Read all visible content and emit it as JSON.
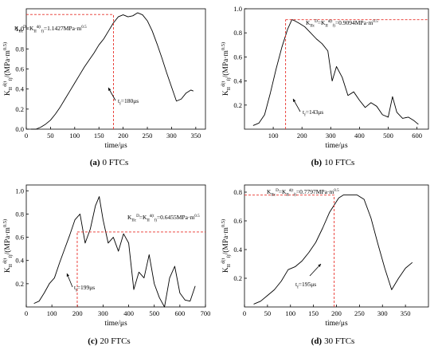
{
  "chart_data": [
    {
      "type": "line",
      "panel_letter": "(a)",
      "caption": "0 FTCs",
      "xlabel": "time/μs",
      "ylabel": "K_II^d(t_f)/(MPa·m^0.5)",
      "xlim": [
        0,
        370
      ],
      "ylim": [
        0,
        1.2
      ],
      "xticks": [
        0,
        50,
        100,
        150,
        200,
        250,
        300,
        350
      ],
      "yticks": [
        0.0,
        0.2,
        0.4,
        0.6,
        0.8,
        1.0
      ],
      "series": [
        {
          "x": [
            10,
            20,
            30,
            40,
            50,
            60,
            70,
            80,
            90,
            100,
            110,
            120,
            130,
            140,
            150,
            160,
            170,
            180,
            190,
            200,
            210,
            220,
            230,
            240,
            250,
            260,
            270,
            280,
            290,
            300,
            310,
            320,
            330,
            340,
            345
          ],
          "y": [
            0.0,
            0.0,
            0.02,
            0.05,
            0.09,
            0.15,
            0.22,
            0.3,
            0.38,
            0.46,
            0.54,
            0.62,
            0.69,
            0.76,
            0.84,
            0.9,
            0.98,
            1.06,
            1.12,
            1.14,
            1.12,
            1.13,
            1.16,
            1.14,
            1.08,
            0.98,
            0.85,
            0.71,
            0.56,
            0.42,
            0.28,
            0.3,
            0.36,
            0.39,
            0.38
          ]
        }
      ],
      "critical_time": 180,
      "critical_value": 1.1427,
      "annotation_value": "K_IIc^D=K_II^d(t_f)=1.1427MPa·m^0.5",
      "annotation_time": "t_f=180μs"
    },
    {
      "type": "line",
      "panel_letter": "(b)",
      "caption": "10 FTCs",
      "xlabel": "time/μs",
      "ylabel": "K_II^d(t_f)/(MPa·m^0.5)",
      "xlim": [
        0,
        640
      ],
      "ylim": [
        0,
        1.0
      ],
      "xticks": [
        100,
        200,
        300,
        400,
        500,
        600
      ],
      "yticks": [
        0.2,
        0.4,
        0.6,
        0.8,
        1.0
      ],
      "series": [
        {
          "x": [
            30,
            50,
            70,
            90,
            110,
            130,
            150,
            165,
            175,
            190,
            210,
            230,
            250,
            270,
            290,
            305,
            320,
            340,
            360,
            380,
            400,
            420,
            440,
            460,
            480,
            500,
            515,
            530,
            550,
            570,
            590,
            605
          ],
          "y": [
            0.03,
            0.05,
            0.12,
            0.3,
            0.5,
            0.68,
            0.83,
            0.91,
            0.9,
            0.88,
            0.85,
            0.8,
            0.75,
            0.71,
            0.65,
            0.4,
            0.52,
            0.43,
            0.28,
            0.31,
            0.24,
            0.18,
            0.22,
            0.19,
            0.12,
            0.1,
            0.27,
            0.14,
            0.09,
            0.1,
            0.07,
            0.04
          ]
        }
      ],
      "critical_time": 143,
      "critical_value": 0.9094,
      "annotation_value": "K_IIc^D=K_II^d(t_f)=0.9094MPa·m^0.5",
      "annotation_time": "t_f=143μs"
    },
    {
      "type": "line",
      "panel_letter": "(c)",
      "caption": "20 FTCs",
      "xlabel": "time/μs",
      "ylabel": "K_II^d(t_f)/(MPa·m^0.5)",
      "xlim": [
        0,
        700
      ],
      "ylim": [
        0,
        1.05
      ],
      "xticks": [
        0,
        100,
        200,
        300,
        400,
        500,
        600,
        700
      ],
      "yticks": [
        0.2,
        0.4,
        0.6,
        0.8,
        1.0
      ],
      "series": [
        {
          "x": [
            30,
            50,
            70,
            90,
            110,
            130,
            150,
            170,
            190,
            210,
            230,
            250,
            270,
            285,
            300,
            320,
            340,
            360,
            380,
            400,
            420,
            440,
            460,
            480,
            500,
            520,
            540,
            560,
            580,
            600,
            620,
            640,
            660
          ],
          "y": [
            0.03,
            0.05,
            0.12,
            0.2,
            0.25,
            0.38,
            0.5,
            0.62,
            0.75,
            0.8,
            0.55,
            0.67,
            0.87,
            0.95,
            0.75,
            0.55,
            0.6,
            0.48,
            0.63,
            0.55,
            0.15,
            0.3,
            0.25,
            0.45,
            0.2,
            0.08,
            0.0,
            0.25,
            0.35,
            0.12,
            0.06,
            0.05,
            0.18
          ]
        }
      ],
      "critical_time": 199,
      "critical_value": 0.6455,
      "annotation_value": "K_IIc^D=K_II^d(t_f)=0.6455MPa·m^0.5",
      "annotation_time": "t_f=199μs"
    },
    {
      "type": "line",
      "panel_letter": "(d)",
      "caption": "30 FTCs",
      "xlabel": "time/μs",
      "ylabel": "K_II^d(t_f)/(MPa·m^0.5)",
      "xlim": [
        0,
        400
      ],
      "ylim": [
        0,
        0.85
      ],
      "xticks": [
        0,
        50,
        100,
        150,
        200,
        250,
        300,
        350
      ],
      "yticks": [
        0.2,
        0.4,
        0.6,
        0.8
      ],
      "series": [
        {
          "x": [
            20,
            35,
            50,
            65,
            80,
            95,
            110,
            125,
            140,
            155,
            170,
            185,
            195,
            205,
            215,
            230,
            245,
            260,
            275,
            290,
            305,
            320,
            335,
            350,
            365
          ],
          "y": [
            0.02,
            0.04,
            0.08,
            0.12,
            0.18,
            0.26,
            0.28,
            0.32,
            0.38,
            0.45,
            0.55,
            0.66,
            0.71,
            0.76,
            0.78,
            0.78,
            0.78,
            0.75,
            0.62,
            0.44,
            0.27,
            0.12,
            0.2,
            0.27,
            0.31
          ]
        }
      ],
      "critical_time": 195,
      "critical_value": 0.7797,
      "annotation_value": "K_IIc^D=K_II^d(t_f)=0.7797MPa·m^0.5",
      "annotation_time": "t_f=195μs"
    }
  ]
}
